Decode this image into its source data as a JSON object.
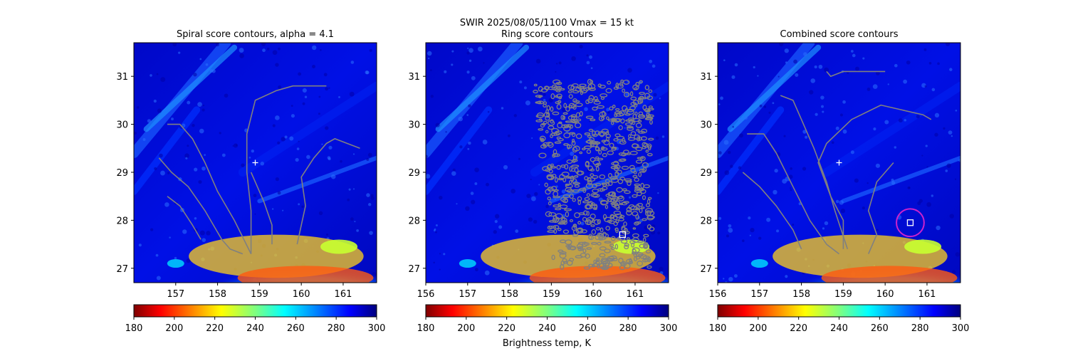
{
  "suptitle": "SWIR  2025/08/05/1100    Vmax = 15 kt",
  "colorbar_label": "Brightness temp, K",
  "chart_data": [
    {
      "type": "heatmap",
      "title": "Spiral score contours, alpha =  4.1",
      "xlim": [
        156.0,
        161.8
      ],
      "ylim": [
        26.7,
        31.7
      ],
      "xticks": [
        157,
        158,
        159,
        160,
        161
      ],
      "yticks": [
        27,
        28,
        29,
        30,
        31
      ],
      "center_marker": {
        "x": 158.9,
        "y": 29.2,
        "symbol": "+"
      },
      "contours": [
        [
          [
            156.6,
            29.3
          ],
          [
            156.9,
            29.0
          ],
          [
            157.3,
            28.7
          ],
          [
            157.7,
            28.2
          ],
          [
            158.1,
            27.6
          ],
          [
            158.3,
            27.4
          ],
          [
            158.6,
            27.3
          ]
        ],
        [
          [
            156.8,
            28.5
          ],
          [
            157.1,
            28.3
          ],
          [
            157.4,
            27.9
          ],
          [
            157.6,
            27.6
          ]
        ],
        [
          [
            156.8,
            30.0
          ],
          [
            157.1,
            30.0
          ],
          [
            157.4,
            29.7
          ],
          [
            157.7,
            29.2
          ],
          [
            158.0,
            28.6
          ],
          [
            158.4,
            28.0
          ],
          [
            158.8,
            27.3
          ]
        ],
        [
          [
            158.8,
            27.3
          ],
          [
            158.8,
            28.2
          ],
          [
            158.7,
            29.0
          ],
          [
            158.7,
            29.8
          ],
          [
            158.9,
            30.5
          ],
          [
            159.4,
            30.7
          ],
          [
            159.8,
            30.8
          ],
          [
            160.1,
            30.8
          ],
          [
            160.6,
            30.8
          ]
        ],
        [
          [
            159.3,
            27.5
          ],
          [
            159.3,
            27.9
          ],
          [
            159.1,
            28.4
          ],
          [
            158.8,
            29.0
          ]
        ],
        [
          [
            159.9,
            27.5
          ],
          [
            160.0,
            27.9
          ],
          [
            160.1,
            28.3
          ],
          [
            160.0,
            28.9
          ],
          [
            160.3,
            29.3
          ],
          [
            160.6,
            29.6
          ],
          [
            160.8,
            29.7
          ],
          [
            161.1,
            29.6
          ],
          [
            161.4,
            29.5
          ]
        ]
      ]
    },
    {
      "type": "heatmap",
      "title": "Ring score contours",
      "xlim": [
        156.0,
        161.8
      ],
      "ylim": [
        26.7,
        31.7
      ],
      "xticks": [
        156,
        157,
        158,
        159,
        160,
        161
      ],
      "yticks": [
        27,
        28,
        29,
        30,
        31
      ],
      "square_marker": {
        "x": 160.7,
        "y": 27.7
      },
      "contours": []
    },
    {
      "type": "heatmap",
      "title": "Combined score contours",
      "xlim": [
        156.0,
        161.8
      ],
      "ylim": [
        26.7,
        31.7
      ],
      "xticks": [
        156,
        157,
        158,
        159,
        160,
        161
      ],
      "yticks": [
        27,
        28,
        29,
        30,
        31
      ],
      "center_marker": {
        "x": 158.9,
        "y": 29.2,
        "symbol": "+"
      },
      "square_marker": {
        "x": 160.6,
        "y": 27.95
      },
      "circle_marker": {
        "x": 160.6,
        "y": 27.95,
        "radius_deg": 0.33,
        "color": "#cc22cc"
      },
      "contours": [
        [
          [
            156.7,
            29.8
          ],
          [
            157.1,
            29.8
          ],
          [
            157.4,
            29.4
          ],
          [
            157.8,
            28.7
          ],
          [
            158.2,
            28.0
          ],
          [
            158.6,
            27.5
          ],
          [
            158.9,
            27.3
          ]
        ],
        [
          [
            156.6,
            29.0
          ],
          [
            157.0,
            28.7
          ],
          [
            157.4,
            28.3
          ],
          [
            157.8,
            27.8
          ],
          [
            158.0,
            27.4
          ]
        ],
        [
          [
            157.5,
            30.6
          ],
          [
            157.8,
            30.5
          ],
          [
            158.0,
            30.1
          ],
          [
            158.3,
            29.5
          ],
          [
            158.6,
            28.8
          ],
          [
            158.8,
            28.2
          ],
          [
            159.1,
            27.4
          ]
        ],
        [
          [
            159.0,
            27.4
          ],
          [
            159.0,
            28.0
          ],
          [
            158.7,
            28.5
          ],
          [
            158.4,
            29.2
          ],
          [
            158.6,
            29.6
          ],
          [
            159.2,
            30.1
          ],
          [
            159.9,
            30.4
          ],
          [
            160.4,
            30.3
          ],
          [
            160.9,
            30.2
          ],
          [
            161.1,
            30.1
          ]
        ],
        [
          [
            159.6,
            27.3
          ],
          [
            159.8,
            27.7
          ],
          [
            159.6,
            28.2
          ],
          [
            159.8,
            28.8
          ],
          [
            160.2,
            29.2
          ]
        ],
        [
          [
            158.6,
            31.1
          ],
          [
            158.7,
            31.0
          ],
          [
            159.0,
            31.1
          ],
          [
            159.4,
            31.1
          ],
          [
            160.0,
            31.1
          ]
        ]
      ]
    }
  ],
  "colorbar": {
    "cmap": "jet_r",
    "vmin": 180,
    "vmax": 300,
    "ticks": [
      180,
      200,
      220,
      240,
      260,
      280,
      300
    ]
  }
}
